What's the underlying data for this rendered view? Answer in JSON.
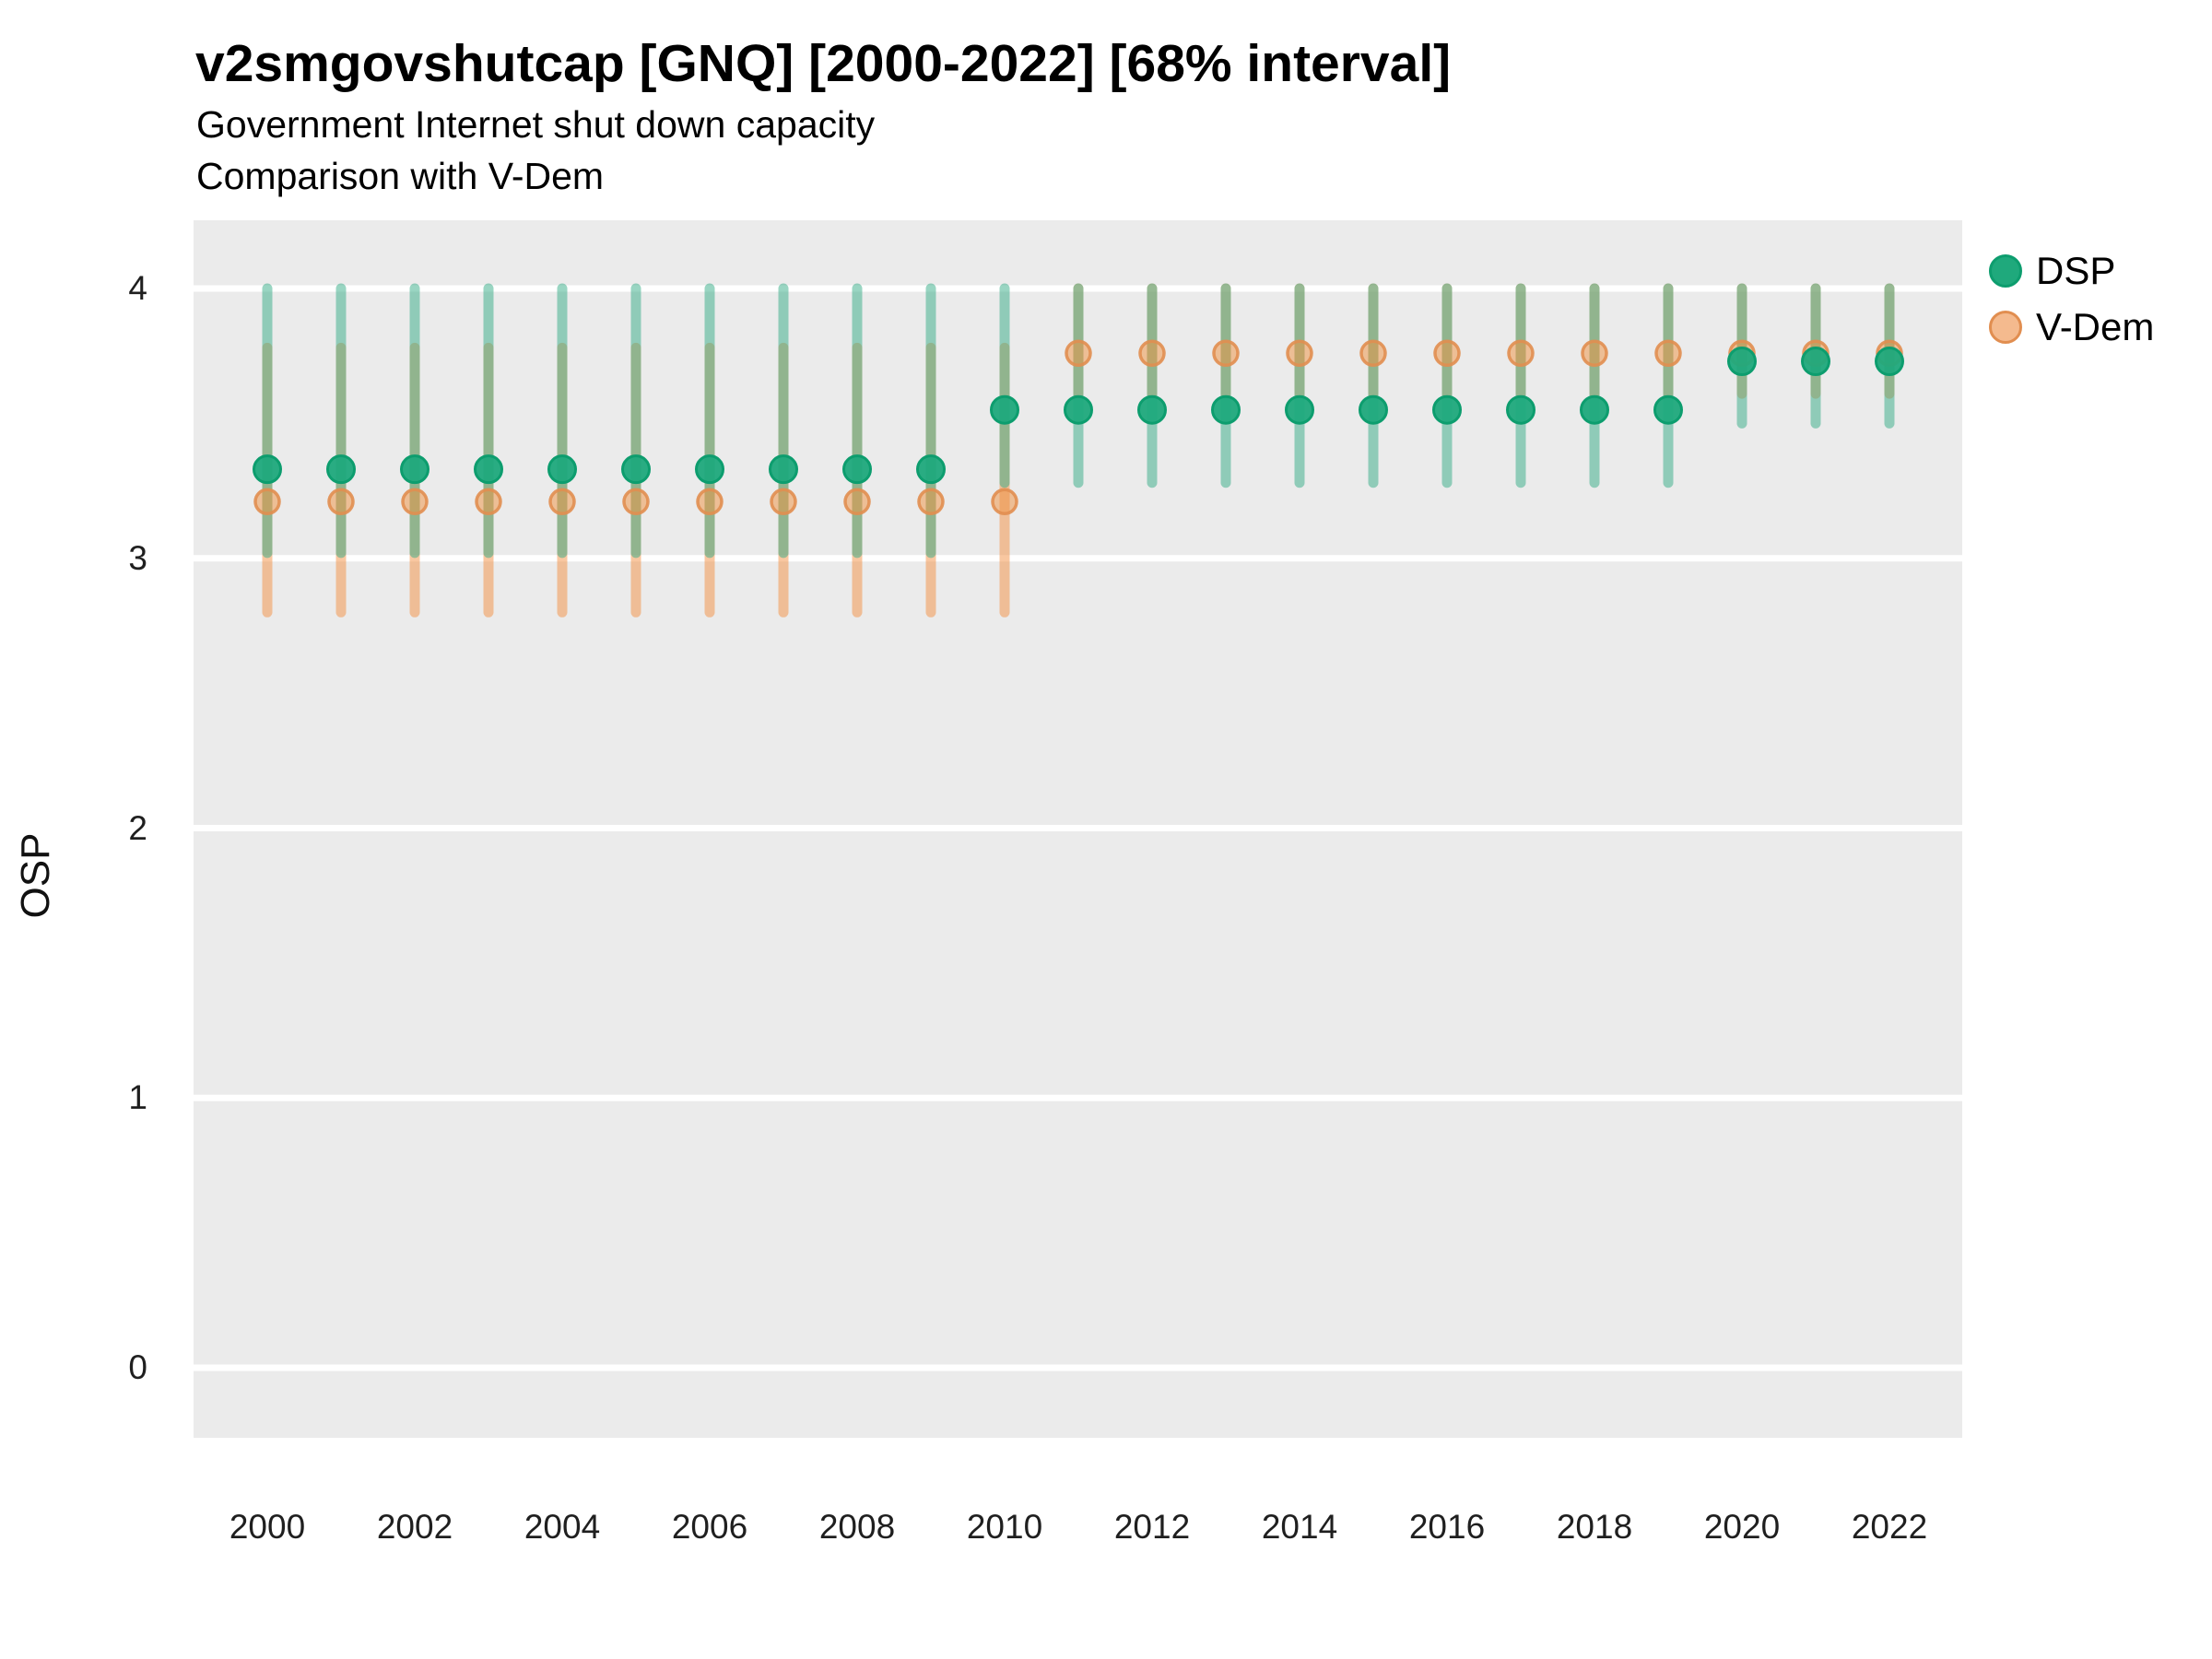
{
  "header": {
    "title": "v2smgovshutcap [GNQ] [2000-2022] [68% interval]",
    "subtitle1": "Government Internet shut down capacity",
    "subtitle2": "Comparison with V-Dem"
  },
  "y_axis": {
    "label": "OSP",
    "ticks": [
      "4",
      "3",
      "2",
      "1",
      "0"
    ]
  },
  "x_axis": {
    "ticks": [
      "2000",
      "2002",
      "2004",
      "2006",
      "2008",
      "2010",
      "2012",
      "2014",
      "2016",
      "2018",
      "2020",
      "2022"
    ]
  },
  "legend": {
    "position": "right",
    "items": [
      {
        "name": "DSP",
        "label": "DSP"
      },
      {
        "name": "V-Dem",
        "label": "V-Dem"
      }
    ]
  },
  "colors": {
    "panel_bg": "#EBEBEB",
    "gridline": "#FFFFFF",
    "dsp_point": "#1FA97C",
    "dsp_point_ring": "#0D9D6E",
    "dsp_interval": "#33AB85",
    "vdem_point": "#F0923F",
    "vdem_point_ring": "#E18E50",
    "vdem_interval": "#F38F41"
  },
  "chart_data": {
    "type": "pointrange",
    "title": "v2smgovshutcap [GNQ] [2000-2022] [68% interval]",
    "subtitle": [
      "Government Internet shut down capacity",
      "Comparison with V-Dem"
    ],
    "xlabel": "",
    "ylabel": "OSP",
    "interval": "68%",
    "grid": true,
    "legend_position": "right",
    "ylim": [
      -0.26,
      4.25
    ],
    "y_gridlines": [
      4,
      3,
      2,
      1,
      0
    ],
    "x": [
      2000,
      2001,
      2002,
      2003,
      2004,
      2005,
      2006,
      2007,
      2008,
      2009,
      2010,
      2011,
      2012,
      2013,
      2014,
      2015,
      2016,
      2017,
      2018,
      2019,
      2020,
      2021,
      2022
    ],
    "series": [
      {
        "name": "DSP",
        "est": [
          3.33,
          3.33,
          3.33,
          3.33,
          3.33,
          3.33,
          3.33,
          3.33,
          3.33,
          3.33,
          3.55,
          3.55,
          3.55,
          3.55,
          3.55,
          3.55,
          3.55,
          3.55,
          3.55,
          3.55,
          3.73,
          3.73,
          3.73
        ],
        "lo": [
          3.02,
          3.02,
          3.02,
          3.02,
          3.02,
          3.02,
          3.02,
          3.02,
          3.02,
          3.02,
          3.28,
          3.28,
          3.28,
          3.28,
          3.28,
          3.28,
          3.28,
          3.28,
          3.28,
          3.28,
          3.5,
          3.5,
          3.5
        ],
        "hi": [
          4.0,
          4.0,
          4.0,
          4.0,
          4.0,
          4.0,
          4.0,
          4.0,
          4.0,
          4.0,
          4.0,
          4.0,
          4.0,
          4.0,
          4.0,
          4.0,
          4.0,
          4.0,
          4.0,
          4.0,
          4.0,
          4.0,
          4.0
        ]
      },
      {
        "name": "V-Dem",
        "est": [
          3.21,
          3.21,
          3.21,
          3.21,
          3.21,
          3.21,
          3.21,
          3.21,
          3.21,
          3.21,
          3.21,
          3.76,
          3.76,
          3.76,
          3.76,
          3.76,
          3.76,
          3.76,
          3.76,
          3.76,
          3.76,
          3.76,
          3.76
        ],
        "lo": [
          2.8,
          2.8,
          2.8,
          2.8,
          2.8,
          2.8,
          2.8,
          2.8,
          2.8,
          2.8,
          2.8,
          3.61,
          3.61,
          3.61,
          3.61,
          3.61,
          3.61,
          3.61,
          3.61,
          3.61,
          3.61,
          3.61,
          3.61
        ],
        "hi": [
          3.78,
          3.78,
          3.78,
          3.78,
          3.78,
          3.78,
          3.78,
          3.78,
          3.78,
          3.78,
          3.78,
          4.0,
          4.0,
          4.0,
          4.0,
          4.0,
          4.0,
          4.0,
          4.0,
          4.0,
          4.0,
          4.0,
          4.0
        ]
      }
    ]
  }
}
